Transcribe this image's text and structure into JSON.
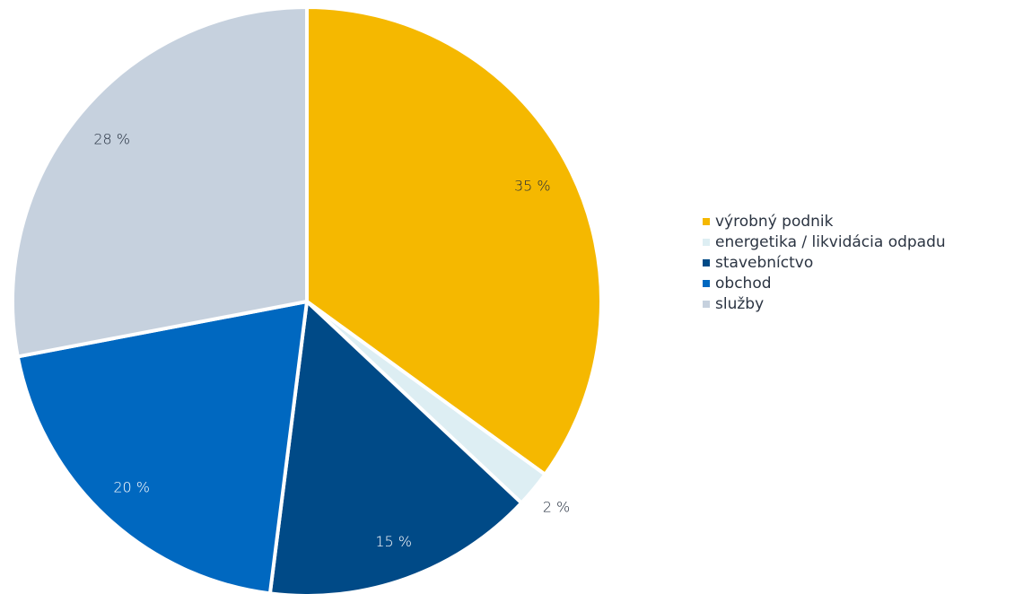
{
  "chart_data": {
    "type": "pie",
    "title": "",
    "legend_position": "right",
    "series": [
      {
        "label": "výrobný podnik",
        "value": 35,
        "display": "35 %",
        "color": "#f5b800"
      },
      {
        "label": "energetika / likvidácia odpadu",
        "value": 2,
        "display": "2 %",
        "color": "#ddeef3"
      },
      {
        "label": "stavebníctvo",
        "value": 15,
        "display": "15 %",
        "color": "#004a87"
      },
      {
        "label": "obchod",
        "value": 20,
        "display": "20 %",
        "color": "#0068c0"
      },
      {
        "label": "služby",
        "value": 28,
        "display": "28 %",
        "color": "#c6d1de"
      }
    ]
  }
}
